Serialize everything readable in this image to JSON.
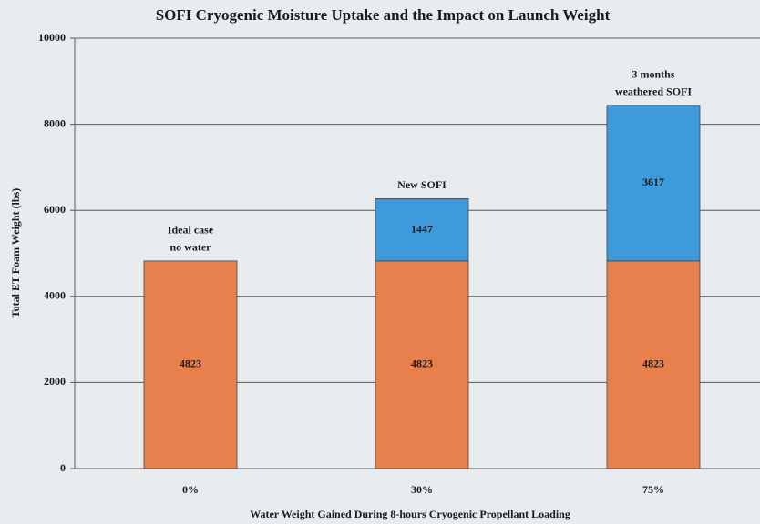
{
  "chart_data": {
    "type": "stacked_bar",
    "title": "SOFI Cryogenic Moisture Uptake and the Impact on Launch Weight",
    "x_label": "Water Weight Gained During 8-hours Cryogenic Propellant Loading",
    "y_label": "Total ET Foam Weight (lbs)",
    "categories": [
      "0%",
      "30%",
      "75%"
    ],
    "series": [
      {
        "color": "#e8804d",
        "values": [
          4823,
          4823,
          4823
        ]
      },
      {
        "color": "#3d9bdc",
        "values": [
          null,
          1447,
          3617
        ]
      }
    ],
    "annotations": [
      [
        "Ideal case",
        "no water"
      ],
      [
        "New SOFI"
      ],
      [
        "3 months",
        "weathered SOFI"
      ]
    ],
    "ylim": [
      0,
      10000
    ],
    "yticks": [
      0,
      2000,
      4000,
      6000,
      8000,
      10000
    ],
    "grid": true
  }
}
